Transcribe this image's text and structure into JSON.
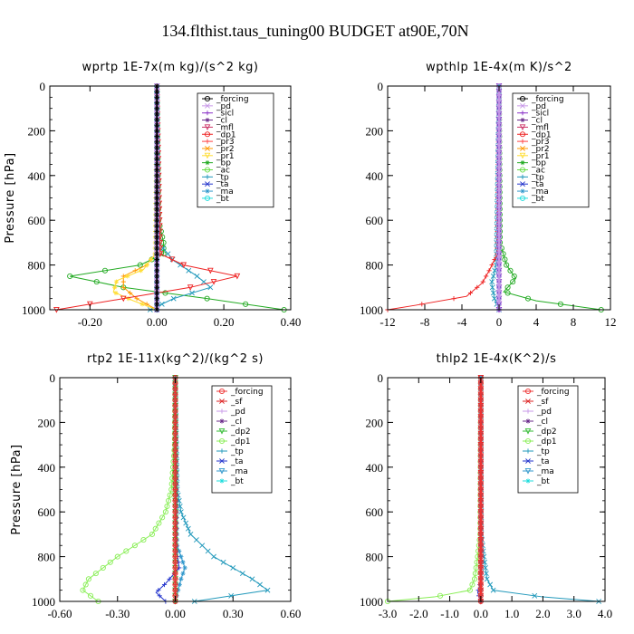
{
  "figure": {
    "title": "134.flthist.taus_tuning00  BUDGET at90E,70N"
  },
  "colors": {
    "forcing": "#000000",
    "pd": "#c899e8",
    "sicl": "#8a33c8",
    "cl": "#6a2a8a",
    "mfl": "#cc3366",
    "dp1": "#ee2222",
    "pr3": "#ff4444",
    "pr2": "#ff9900",
    "pr1": "#ffdd33",
    "bp": "#22aa22",
    "ac": "#66dd44",
    "tp": "#2299bb",
    "ta": "#2233cc",
    "ma": "#3399cc",
    "bt": "#22dddd",
    "sf": "#dd2222",
    "dp2": "#33bb33",
    "dp1_green": "#88ee55",
    "forcing_red": "#ee3333"
  },
  "chart_data": [
    {
      "type": "line",
      "title": "wprtp   1E-7x(m kg)/(s^2 kg)",
      "ylabel": "Pressure [hPa]",
      "xlim": [
        -0.32,
        0.4
      ],
      "ylim": [
        1000,
        0
      ],
      "xticks": [
        -0.2,
        0.0,
        0.2,
        0.4
      ],
      "xtick_labels": [
        "-0.20",
        "0.00",
        "0.20",
        "0.40"
      ],
      "yticks": [
        0,
        200,
        400,
        600,
        800,
        1000
      ],
      "ytick_labels": [
        "0",
        "200",
        "400",
        "600",
        "800",
        "1000"
      ],
      "legend": [
        "_forcing",
        "_pd",
        "_sicl",
        "_cl",
        "_mfl",
        "_dp1",
        "_pr3",
        "_pr2",
        "_pr1",
        "_bp",
        "_ac",
        "_tp",
        "_ta",
        "_ma",
        "_bt"
      ],
      "series": [
        {
          "name": "_bp",
          "color": "#22aa22",
          "p": [
            0,
            600,
            700,
            750,
            800,
            850,
            900,
            950,
            1000
          ],
          "x": [
            0,
            0.005,
            0.02,
            0.02,
            -0.05,
            -0.26,
            -0.1,
            0.15,
            0.38
          ]
        },
        {
          "name": "_tp",
          "color": "#2299bb",
          "p": [
            0,
            700,
            780,
            850,
            900,
            950,
            1000
          ],
          "x": [
            0,
            0.005,
            0.05,
            0.12,
            0.16,
            0.05,
            -0.02
          ]
        },
        {
          "name": "_pr2",
          "color": "#ff9900",
          "p": [
            0,
            750,
            800,
            850,
            900,
            950,
            1000
          ],
          "x": [
            0,
            -0.005,
            -0.03,
            -0.1,
            -0.1,
            -0.06,
            0
          ]
        },
        {
          "name": "_pr1",
          "color": "#ffdd33",
          "p": [
            0,
            750,
            820,
            870,
            920,
            960,
            1000
          ],
          "x": [
            0,
            -0.005,
            -0.04,
            -0.12,
            -0.13,
            -0.07,
            0
          ]
        },
        {
          "name": "_dp1",
          "color": "#ee2222",
          "p": [
            0,
            750,
            800,
            850,
            900,
            950,
            1000
          ],
          "x": [
            0,
            0.01,
            0.08,
            0.24,
            0.1,
            -0.1,
            -0.3
          ]
        },
        {
          "name": "_ma",
          "color": "#3399cc",
          "p": [
            0,
            1000
          ],
          "x": [
            0,
            0
          ]
        },
        {
          "name": "_mfl",
          "color": "#cc3366",
          "p": [
            0,
            1000
          ],
          "x": [
            0,
            0
          ]
        },
        {
          "name": "_sicl",
          "color": "#8a33c8",
          "p": [
            0,
            1000
          ],
          "x": [
            0,
            0
          ]
        },
        {
          "name": "_pd",
          "color": "#c899e8",
          "p": [
            0,
            1000
          ],
          "x": [
            0,
            0
          ]
        },
        {
          "name": "_forcing",
          "color": "#000000",
          "p": [
            0,
            1000
          ],
          "x": [
            0,
            0
          ]
        }
      ]
    },
    {
      "type": "line",
      "title": "wpthlp   1E-4x(m K)/s^2",
      "ylabel": "",
      "xlim": [
        -12,
        12
      ],
      "ylim": [
        1000,
        0
      ],
      "xticks": [
        -12,
        -8,
        -4,
        0,
        4,
        8,
        12
      ],
      "xtick_labels": [
        "-12",
        "-8",
        "-4",
        "0",
        "4",
        "8",
        "12"
      ],
      "yticks": [
        0,
        200,
        400,
        600,
        800,
        1000
      ],
      "ytick_labels": [
        "0",
        "200",
        "400",
        "600",
        "800",
        "1000"
      ],
      "legend": [
        "_forcing",
        "_pd",
        "_sicl",
        "_cl",
        "_mfl",
        "_dp1",
        "_pr3",
        "_pr2",
        "_pr1",
        "_bp",
        "_ac",
        "_tp",
        "_ta",
        "_ma",
        "_bt"
      ],
      "series": [
        {
          "name": "_bp",
          "color": "#22aa22",
          "p": [
            0,
            700,
            800,
            860,
            920,
            960,
            1000
          ],
          "x": [
            0,
            0.1,
            0.8,
            1.8,
            0.5,
            4.0,
            11.0
          ]
        },
        {
          "name": "_tp",
          "color": "#2299bb",
          "p": [
            0,
            800,
            880,
            950,
            1000
          ],
          "x": [
            0,
            -0.3,
            -0.8,
            -0.5,
            0
          ]
        },
        {
          "name": "_dp1",
          "color": "#ee2222",
          "p": [
            0,
            750,
            820,
            880,
            940,
            980,
            1000
          ],
          "x": [
            0,
            -0.2,
            -1.0,
            -1.8,
            -3.5,
            -9.0,
            -12.0
          ]
        },
        {
          "name": "_ma",
          "color": "#3399cc",
          "p": [
            0,
            1000
          ],
          "x": [
            0,
            0
          ]
        },
        {
          "name": "_sicl",
          "color": "#8a33c8",
          "p": [
            0,
            1000
          ],
          "x": [
            0,
            0
          ]
        },
        {
          "name": "_pd",
          "color": "#c899e8",
          "p": [
            0,
            1000
          ],
          "x": [
            0,
            0
          ]
        }
      ]
    },
    {
      "type": "line",
      "title": "rtp2   1E-11x(kg^2)/(kg^2 s)",
      "ylabel": "Pressure [hPa]",
      "xlim": [
        -0.6,
        0.6
      ],
      "ylim": [
        1000,
        0
      ],
      "xticks": [
        -0.6,
        -0.3,
        0.0,
        0.3,
        0.6
      ],
      "xtick_labels": [
        "-0.60",
        "-0.30",
        "0.00",
        "0.30",
        "0.60"
      ],
      "yticks": [
        0,
        200,
        400,
        600,
        800,
        1000
      ],
      "ytick_labels": [
        "0",
        "200",
        "400",
        "600",
        "800",
        "1000"
      ],
      "legend": [
        "_forcing",
        "_sf",
        "_pd",
        "_cl",
        "_dp2",
        "_dp1",
        "_tp",
        "_ta",
        "_ma",
        "_bt"
      ],
      "series": [
        {
          "name": "_dp1",
          "color": "#88ee55",
          "p": [
            0,
            300,
            500,
            600,
            700,
            800,
            900,
            950,
            1000
          ],
          "x": [
            0,
            -0.003,
            -0.02,
            -0.05,
            -0.12,
            -0.3,
            -0.45,
            -0.48,
            -0.4
          ]
        },
        {
          "name": "_tp",
          "color": "#2299bb",
          "p": [
            0,
            500,
            600,
            700,
            800,
            900,
            950,
            1000
          ],
          "x": [
            0,
            0.01,
            0.03,
            0.08,
            0.2,
            0.4,
            0.48,
            0.1
          ]
        },
        {
          "name": "_ta",
          "color": "#2233cc",
          "p": [
            0,
            750,
            850,
            920,
            960,
            1000
          ],
          "x": [
            0,
            0.005,
            0.02,
            -0.05,
            -0.1,
            -0.05
          ]
        },
        {
          "name": "_ma",
          "color": "#3399cc",
          "p": [
            0,
            750,
            800,
            850,
            900,
            1000
          ],
          "x": [
            0,
            0.01,
            0.03,
            0.05,
            0.03,
            0
          ]
        },
        {
          "name": "_dp2",
          "color": "#33bb33",
          "p": [
            0,
            1000
          ],
          "x": [
            0,
            0
          ]
        },
        {
          "name": "_sf",
          "color": "#dd2222",
          "p": [
            0,
            1000
          ],
          "x": [
            0,
            0
          ]
        },
        {
          "name": "_forcing",
          "color": "#ee3333",
          "p": [
            0,
            1000
          ],
          "x": [
            0,
            0
          ]
        }
      ]
    },
    {
      "type": "line",
      "title": "thlp2   1E-4x(K^2)/s",
      "ylabel": "",
      "xlim": [
        -3.0,
        4.0
      ],
      "ylim": [
        1000,
        0
      ],
      "xticks": [
        -3.0,
        -2.0,
        -1.0,
        0.0,
        1.0,
        2.0,
        3.0,
        4.0
      ],
      "xtick_labels": [
        "-3.0",
        "-2.0",
        "-1.0",
        "0.0",
        "1.0",
        "2.0",
        "3.0",
        "4.0"
      ],
      "yticks": [
        0,
        200,
        400,
        600,
        800,
        1000
      ],
      "ytick_labels": [
        "0",
        "200",
        "400",
        "600",
        "800",
        "1000"
      ],
      "legend": [
        "_forcing",
        "_sf",
        "_pd",
        "_cl",
        "_dp2",
        "_dp1",
        "_tp",
        "_ta",
        "_ma",
        "_bt"
      ],
      "series": [
        {
          "name": "_dp1",
          "color": "#88ee55",
          "p": [
            0,
            700,
            800,
            850,
            900,
            950,
            980,
            1000
          ],
          "x": [
            0,
            -0.02,
            -0.1,
            -0.15,
            -0.2,
            -0.35,
            -1.5,
            -3.0
          ]
        },
        {
          "name": "_tp",
          "color": "#2299bb",
          "p": [
            0,
            700,
            800,
            850,
            900,
            950,
            980,
            1000
          ],
          "x": [
            0,
            0.02,
            0.1,
            0.15,
            0.2,
            0.4,
            2.0,
            3.8
          ]
        },
        {
          "name": "_ta",
          "color": "#2233cc",
          "p": [
            0,
            900,
            960,
            1000
          ],
          "x": [
            0,
            0.02,
            -0.1,
            0
          ]
        },
        {
          "name": "_ma",
          "color": "#3399cc",
          "p": [
            0,
            1000
          ],
          "x": [
            0,
            0
          ]
        },
        {
          "name": "_sf",
          "color": "#dd2222",
          "p": [
            0,
            1000
          ],
          "x": [
            0,
            0
          ]
        },
        {
          "name": "_forcing",
          "color": "#ee3333",
          "p": [
            0,
            1000
          ],
          "x": [
            0,
            0
          ]
        }
      ]
    }
  ]
}
